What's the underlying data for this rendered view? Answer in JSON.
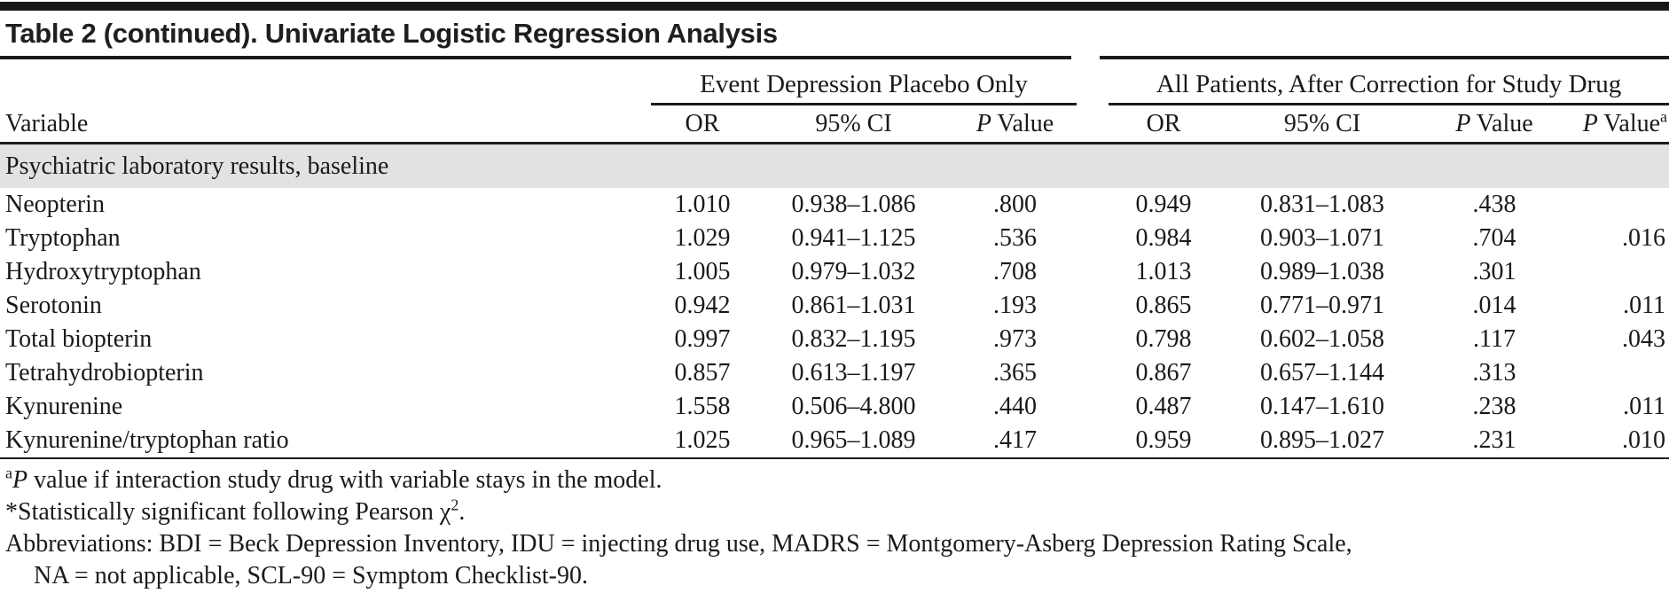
{
  "title": "Table 2 (continued). Univariate Logistic Regression Analysis",
  "colors": {
    "ink": "#1a1a1a",
    "rule": "#1c1c1c",
    "band_bg": "#e2e2e2"
  },
  "header": {
    "variable": "Variable",
    "group1": "Event Depression Placebo Only",
    "group2": "All Patients, After Correction for Study Drug",
    "or": "OR",
    "ci": "95% CI",
    "p_italic": "P",
    "p_rest": " Value",
    "p_sup": "a"
  },
  "section_label": "Psychiatric laboratory results, baseline",
  "rows": [
    {
      "variable": "Neopterin",
      "g1_or": "1.010",
      "g1_ci": "0.938–1.086",
      "g1_p": ".800",
      "g2_or": "0.949",
      "g2_ci": "0.831–1.083",
      "g2_p": ".438",
      "g2_pa": ""
    },
    {
      "variable": "Tryptophan",
      "g1_or": "1.029",
      "g1_ci": "0.941–1.125",
      "g1_p": ".536",
      "g2_or": "0.984",
      "g2_ci": "0.903–1.071",
      "g2_p": ".704",
      "g2_pa": ".016"
    },
    {
      "variable": "Hydroxytryptophan",
      "g1_or": "1.005",
      "g1_ci": "0.979–1.032",
      "g1_p": ".708",
      "g2_or": "1.013",
      "g2_ci": "0.989–1.038",
      "g2_p": ".301",
      "g2_pa": ""
    },
    {
      "variable": "Serotonin",
      "g1_or": "0.942",
      "g1_ci": "0.861–1.031",
      "g1_p": ".193",
      "g2_or": "0.865",
      "g2_ci": "0.771–0.971",
      "g2_p": ".014",
      "g2_pa": ".011"
    },
    {
      "variable": "Total biopterin",
      "g1_or": "0.997",
      "g1_ci": "0.832–1.195",
      "g1_p": ".973",
      "g2_or": "0.798",
      "g2_ci": "0.602–1.058",
      "g2_p": ".117",
      "g2_pa": ".043"
    },
    {
      "variable": "Tetrahydrobiopterin",
      "g1_or": "0.857",
      "g1_ci": "0.613–1.197",
      "g1_p": ".365",
      "g2_or": "0.867",
      "g2_ci": "0.657–1.144",
      "g2_p": ".313",
      "g2_pa": ""
    },
    {
      "variable": "Kynurenine",
      "g1_or": "1.558",
      "g1_ci": "0.506–4.800",
      "g1_p": ".440",
      "g2_or": "0.487",
      "g2_ci": "0.147–1.610",
      "g2_p": ".238",
      "g2_pa": ".011"
    },
    {
      "variable": "Kynurenine/tryptophan ratio",
      "g1_or": "1.025",
      "g1_ci": "0.965–1.089",
      "g1_p": ".417",
      "g2_or": "0.959",
      "g2_ci": "0.895–1.027",
      "g2_p": ".231",
      "g2_pa": ".010"
    }
  ],
  "footnotes": {
    "a_sup": "a",
    "a_italic": "P",
    "a_rest": " value if interaction study drug with variable stays in the model.",
    "sig_pre": "*Statistically significant following Pearson χ",
    "sig_sup": "2",
    "sig_post": ".",
    "abbrev_line1": "Abbreviations: BDI = Beck Depression Inventory, IDU = injecting drug use, MADRS = Montgomery-Asberg Depression Rating Scale,",
    "abbrev_line2": "NA = not applicable, SCL-90 = Symptom Checklist-90."
  }
}
